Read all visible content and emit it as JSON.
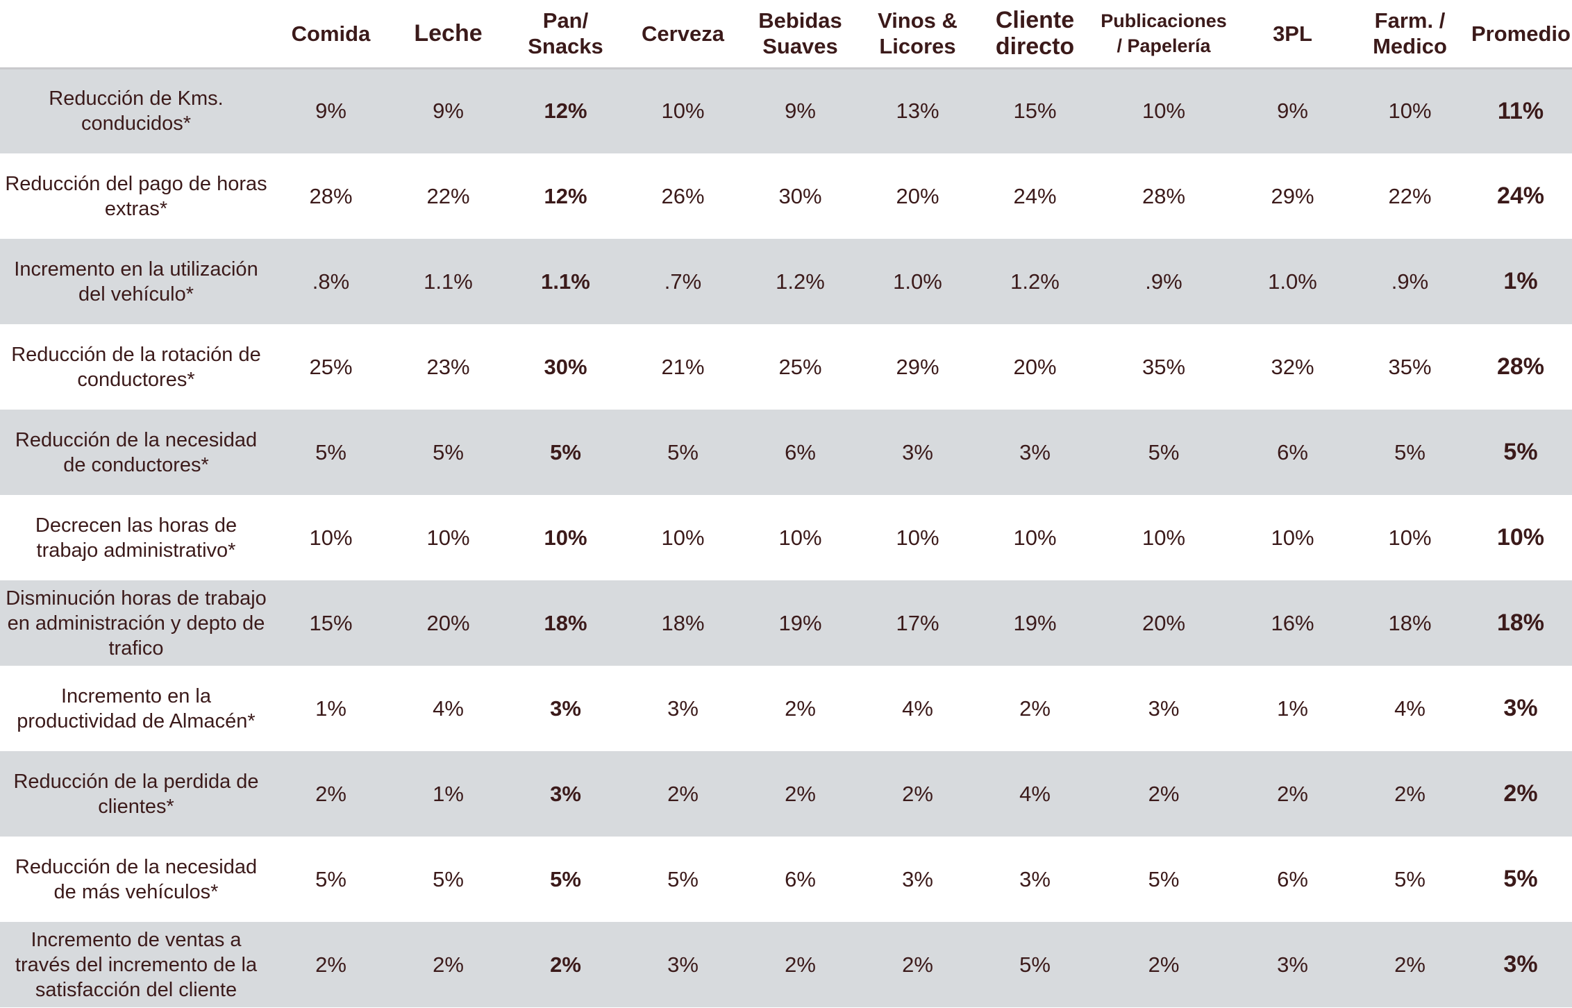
{
  "headers": [
    "",
    "Comida",
    "Leche",
    "Pan/ Snacks",
    "Cerveza",
    "Bebidas Suaves",
    "Vinos & Licores",
    "Cliente directo",
    "Publicaciones / Papelería",
    "3PL",
    "Farm. / Medico",
    "Promedio"
  ],
  "rows": [
    {
      "label": "Reducción de Kms. conducidos*",
      "values": [
        "9%",
        "9%",
        "12%",
        "10%",
        "9%",
        "13%",
        "15%",
        "10%",
        "9%",
        "10%"
      ],
      "average": "11%"
    },
    {
      "label": "Reducción del pago de horas extras*",
      "values": [
        "28%",
        "22%",
        "12%",
        "26%",
        "30%",
        "20%",
        "24%",
        "28%",
        "29%",
        "22%"
      ],
      "average": "24%"
    },
    {
      "label": "Incremento en la utilización del vehículo*",
      "values": [
        ".8%",
        "1.1%",
        "1.1%",
        ".7%",
        "1.2%",
        "1.0%",
        "1.2%",
        ".9%",
        "1.0%",
        ".9%"
      ],
      "average": "1%"
    },
    {
      "label": "Reducción de la rotación de conductores*",
      "values": [
        "25%",
        "23%",
        "30%",
        "21%",
        "25%",
        "29%",
        "20%",
        "35%",
        "32%",
        "35%"
      ],
      "average": "28%"
    },
    {
      "label": "Reducción de la necesidad de conductores*",
      "values": [
        "5%",
        "5%",
        "5%",
        "5%",
        "6%",
        "3%",
        "3%",
        "5%",
        "6%",
        "5%"
      ],
      "average": "5%"
    },
    {
      "label": "Decrecen las horas de trabajo administrativo*",
      "values": [
        "10%",
        "10%",
        "10%",
        "10%",
        "10%",
        "10%",
        "10%",
        "10%",
        "10%",
        "10%"
      ],
      "average": "10%"
    },
    {
      "label": "Disminución horas de trabajo en administración y depto de trafico",
      "values": [
        "15%",
        "20%",
        "18%",
        "18%",
        "19%",
        "17%",
        "19%",
        "20%",
        "16%",
        "18%"
      ],
      "average": "18%"
    },
    {
      "label": "Incremento en la productividad de Almacén*",
      "values": [
        "1%",
        "4%",
        "3%",
        "3%",
        "2%",
        "4%",
        "2%",
        "3%",
        "1%",
        "4%"
      ],
      "average": "3%"
    },
    {
      "label": "Reducción de la perdida de clientes*",
      "values": [
        "2%",
        "1%",
        "3%",
        "2%",
        "2%",
        "2%",
        "4%",
        "2%",
        "2%",
        "2%"
      ],
      "average": "2%"
    },
    {
      "label": "Reducción de la necesidad de más vehículos*",
      "values": [
        "5%",
        "5%",
        "5%",
        "5%",
        "6%",
        "3%",
        "3%",
        "5%",
        "6%",
        "5%"
      ],
      "average": "5%"
    },
    {
      "label": "Incremento de ventas a través del incremento de la satisfacción del cliente",
      "values": [
        "2%",
        "2%",
        "2%",
        "3%",
        "2%",
        "2%",
        "5%",
        "2%",
        "3%",
        "2%"
      ],
      "average": "3%"
    }
  ],
  "colors": {
    "text": "#3b1a1a",
    "shaded_row": "#d7dadd",
    "header_rule": "#c9c9cc",
    "background": "#ffffff"
  }
}
